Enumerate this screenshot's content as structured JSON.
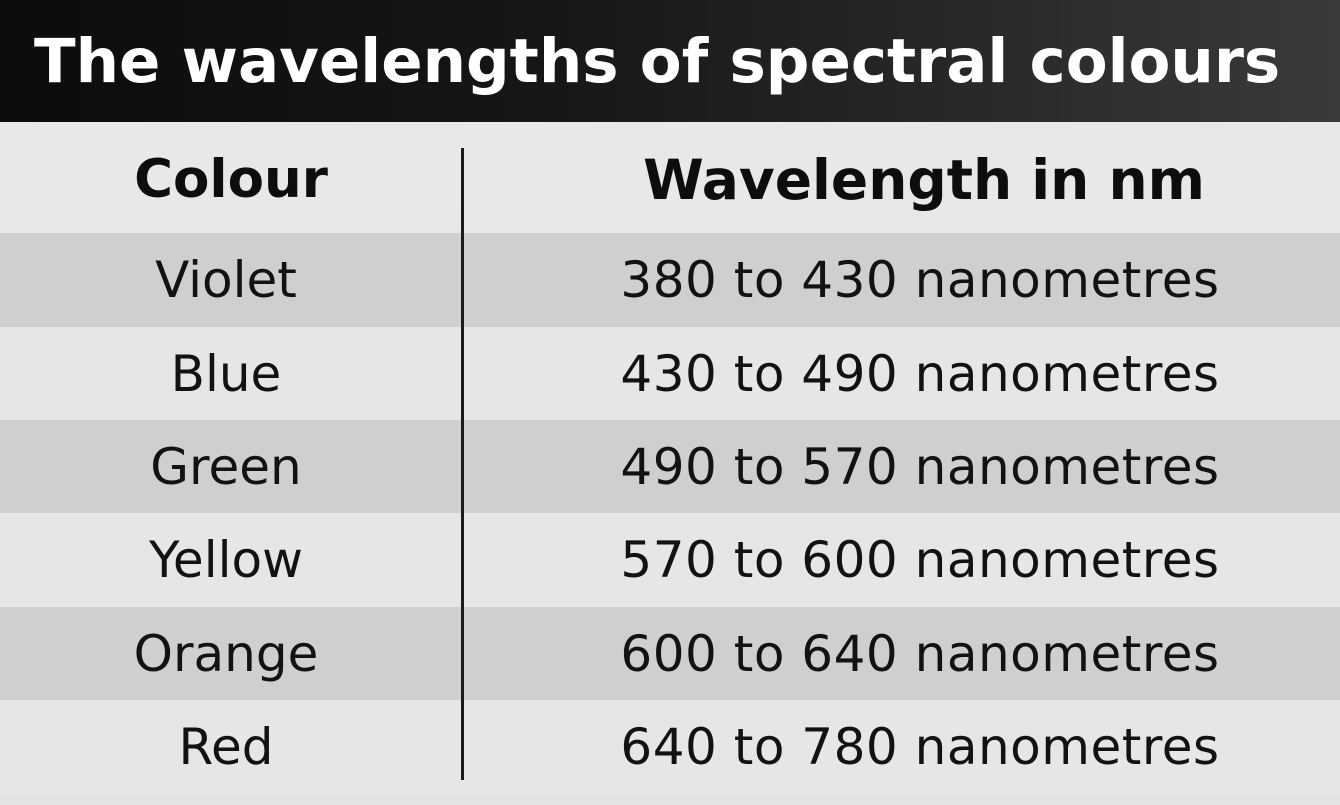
{
  "title": "The wavelengths of spectral colours",
  "table": {
    "headers": [
      "Colour",
      "Wavelength in nm"
    ],
    "rows": [
      [
        "Violet",
        "380 to 430 nanometres"
      ],
      [
        "Blue",
        "430 to 490 nanometres"
      ],
      [
        "Green",
        "490 to 570 nanometres"
      ],
      [
        "Yellow",
        "570 to 600 nanometres"
      ],
      [
        "Orange",
        "600 to 640 nanometres"
      ],
      [
        "Red",
        "640 to 780 nanometres"
      ]
    ]
  },
  "colors": {
    "title_bar": "#111111",
    "title_text": "#ffffff",
    "shaded_row": "#cfcfce",
    "plain_row": "#e6e6e4",
    "divider": "#1a1a1a"
  }
}
